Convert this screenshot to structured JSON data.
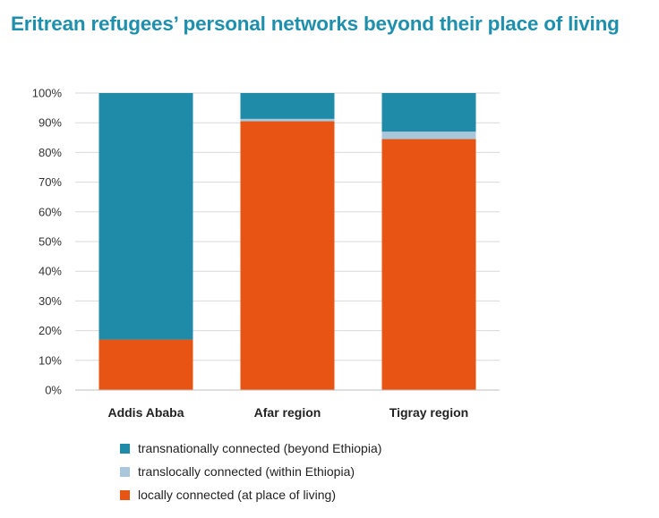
{
  "title": "Eritrean refugees’ personal networks beyond their place of living",
  "chart_data": {
    "type": "bar",
    "stacked": true,
    "categories": [
      "Addis Ababa",
      "Afar region",
      "Tigray region"
    ],
    "series": [
      {
        "name": "locally connected (at place of living)",
        "color": "#e85413",
        "values": [
          17,
          90.5,
          84.5
        ]
      },
      {
        "name": "translocally connected (within Ethiopia)",
        "color": "#a9c7db",
        "values": [
          0,
          0.8,
          2.5
        ]
      },
      {
        "name": "transnationally connected (beyond Ethiopia)",
        "color": "#1f8ba8",
        "values": [
          83,
          8.7,
          13
        ]
      }
    ],
    "yticks": [
      "0%",
      "10%",
      "20%",
      "30%",
      "40%",
      "50%",
      "60%",
      "70%",
      "80%",
      "90%",
      "100%"
    ],
    "ylim": [
      0,
      100
    ],
    "grid": true,
    "legend_position": "bottom"
  },
  "legend": [
    {
      "label": "transnationally connected (beyond Ethiopia)",
      "color": "#1f8ba8"
    },
    {
      "label": "translocally connected (within Ethiopia)",
      "color": "#a9c7db"
    },
    {
      "label": "locally connected (at place of living)",
      "color": "#e85413"
    }
  ]
}
